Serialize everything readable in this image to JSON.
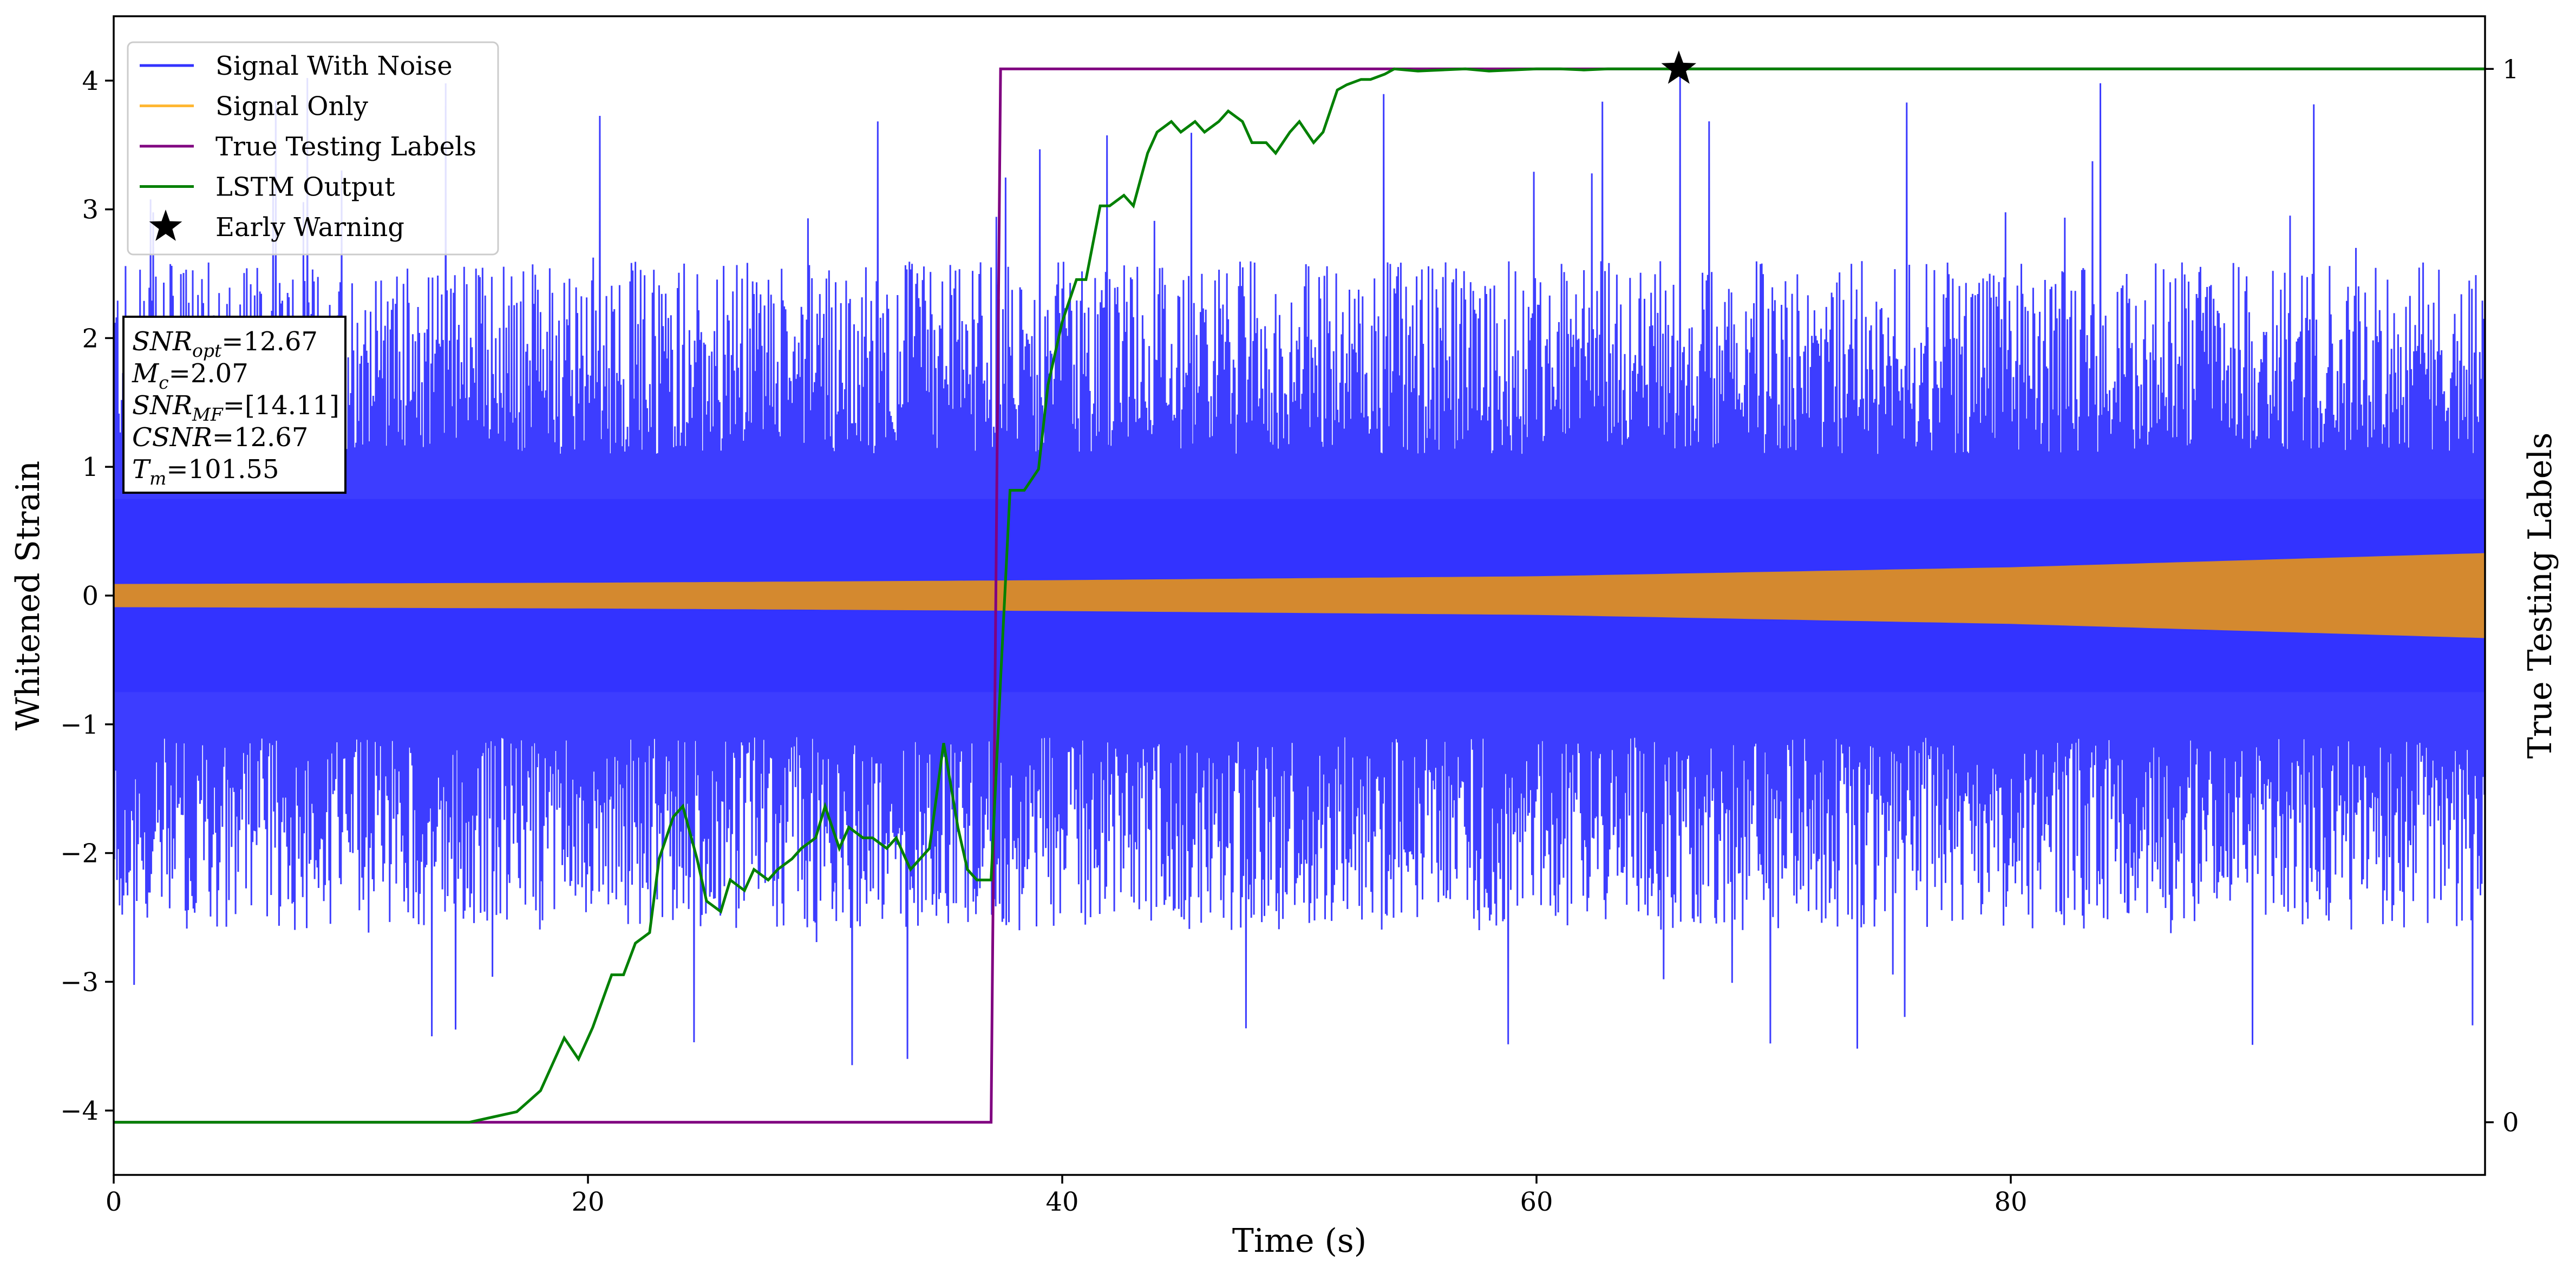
{
  "chart_data": {
    "type": "line",
    "xlabel": "Time (s)",
    "ylabel": "Whitened Strain",
    "ylabel_right": "True Testing Labels",
    "xlim": [
      0,
      100
    ],
    "ylim": [
      -4.5,
      4.5
    ],
    "ylim_right": [
      -0.05,
      1.05
    ],
    "x_ticks": [
      0,
      20,
      40,
      60,
      80
    ],
    "x_tick_labels": [
      "0",
      "20",
      "40",
      "60",
      "80"
    ],
    "y_ticks": [
      -4,
      -3,
      -2,
      -1,
      0,
      1,
      2,
      3,
      4
    ],
    "y_tick_labels": [
      "−4",
      "−3",
      "−2",
      "−1",
      "0",
      "1",
      "2",
      "3",
      "4"
    ],
    "y_right_ticks": [
      0,
      1
    ],
    "y_right_tick_labels": [
      "0",
      "1"
    ],
    "grid": false,
    "legend_position": "top-left",
    "legend": [
      {
        "label": "Signal With Noise",
        "color": "#3333ff",
        "marker": "line"
      },
      {
        "label": "Signal Only",
        "color": "#ffb733",
        "marker": "line"
      },
      {
        "label": "True Testing Labels",
        "color": "#800080",
        "marker": "line"
      },
      {
        "label": "LSTM Output",
        "color": "#008000",
        "marker": "line"
      },
      {
        "label": "Early Warning",
        "color": "#000000",
        "marker": "star"
      }
    ],
    "annotation": [
      {
        "name": "SNR",
        "sub": "opt",
        "value": "=12.67"
      },
      {
        "name": "M",
        "sub": "c",
        "value": "=2.07"
      },
      {
        "name": "SNR",
        "sub": "MF",
        "value": "=[14.11]"
      },
      {
        "name": "CSNR",
        "sub": "",
        "value": "=12.67"
      },
      {
        "name": "T",
        "sub": "m",
        "value": "=101.55"
      }
    ],
    "series": [
      {
        "name": "Signal With Noise",
        "axis": "left",
        "color": "#3333ff",
        "style": "noise band",
        "core_amplitude": 1.1,
        "typical_peak": 2.6,
        "max": 4.08,
        "min": -3.65
      },
      {
        "name": "Signal Only",
        "axis": "left",
        "color": "#d4892f",
        "style": "chirp envelope",
        "x": [
          0,
          20,
          40,
          60,
          80,
          100
        ],
        "amplitude": [
          0.09,
          0.1,
          0.12,
          0.15,
          0.22,
          0.33
        ]
      },
      {
        "name": "True Testing Labels",
        "axis": "right",
        "color": "#800080",
        "x": [
          0,
          37.0,
          37.4,
          100
        ],
        "y": [
          0,
          0,
          1,
          1
        ]
      },
      {
        "name": "LSTM Output",
        "axis": "right",
        "color": "#008000",
        "x": [
          0,
          15,
          16,
          17,
          18,
          19,
          19.6,
          20.2,
          21,
          21.5,
          22,
          22.6,
          23,
          23.6,
          24,
          24.6,
          25,
          25.6,
          26,
          26.6,
          27,
          27.6,
          28,
          28.6,
          29,
          29.6,
          30,
          30.6,
          31,
          31.6,
          32,
          32.6,
          33,
          33.6,
          34,
          34.4,
          35,
          35.6,
          36,
          36.4,
          37,
          37.4,
          37.8,
          38.4,
          39,
          39.4,
          40,
          40.6,
          41,
          41.6,
          42,
          42.6,
          43,
          43.6,
          44,
          44.6,
          45,
          45.6,
          46,
          46.6,
          47,
          47.6,
          48,
          48.6,
          49,
          49.6,
          50,
          50.6,
          51,
          51.6,
          52,
          52.6,
          53,
          53.6,
          54,
          55,
          56,
          57,
          58,
          59,
          60,
          61,
          62,
          63,
          64,
          65,
          66,
          67,
          68,
          70,
          80,
          100
        ],
        "y": [
          0,
          0,
          0.005,
          0.01,
          0.03,
          0.08,
          0.06,
          0.09,
          0.14,
          0.14,
          0.17,
          0.18,
          0.25,
          0.29,
          0.3,
          0.25,
          0.21,
          0.2,
          0.23,
          0.22,
          0.24,
          0.23,
          0.24,
          0.25,
          0.26,
          0.27,
          0.3,
          0.26,
          0.28,
          0.27,
          0.27,
          0.26,
          0.27,
          0.24,
          0.25,
          0.26,
          0.36,
          0.28,
          0.24,
          0.23,
          0.23,
          0.42,
          0.6,
          0.6,
          0.62,
          0.7,
          0.76,
          0.8,
          0.8,
          0.87,
          0.87,
          0.88,
          0.87,
          0.92,
          0.94,
          0.95,
          0.94,
          0.95,
          0.94,
          0.95,
          0.96,
          0.95,
          0.93,
          0.93,
          0.92,
          0.94,
          0.95,
          0.93,
          0.94,
          0.98,
          0.985,
          0.99,
          0.99,
          0.995,
          1.0,
          0.998,
          0.999,
          1.0,
          0.998,
          0.999,
          1.0,
          1.0,
          0.999,
          1.0,
          1.0,
          1.0,
          1.0,
          1.0,
          1.0,
          1.0,
          1.0,
          1.0
        ]
      },
      {
        "name": "Early Warning",
        "axis": "right",
        "color": "#000000",
        "marker": "star",
        "x": [
          66
        ],
        "y": [
          1.0
        ]
      }
    ]
  }
}
